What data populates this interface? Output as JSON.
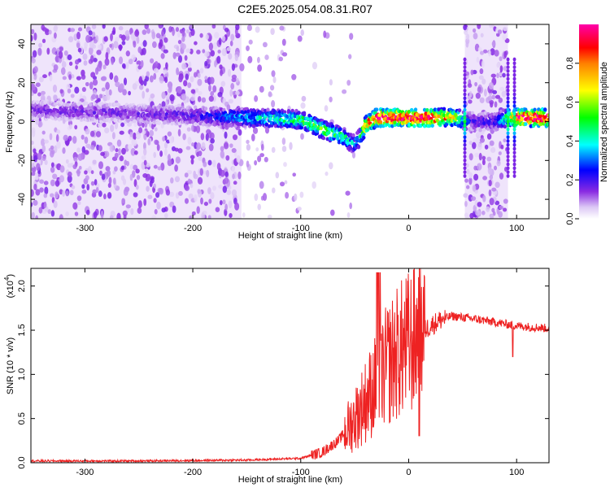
{
  "title": "C2E5.2025.054.08.31.R07",
  "chart_data": [
    {
      "type": "heatmap",
      "xlabel": "Height of straight line (km)",
      "ylabel": "Frequency (Hz)",
      "xlim": [
        -350,
        130
      ],
      "ylim": [
        -50,
        50
      ],
      "xticks": [
        -300,
        -200,
        -100,
        0,
        100
      ],
      "yticks": [
        -40,
        -20,
        0,
        20,
        40
      ],
      "colorbar": {
        "label": "Normalized spectral amplitude",
        "range": [
          0,
          1
        ],
        "ticks": [
          "0.0",
          "0.2",
          "0.4",
          "0.6",
          "0.8"
        ],
        "colors": [
          "#ffffff",
          "#8a2be2",
          "#0000ff",
          "#00ffff",
          "#00ff00",
          "#ffff00",
          "#ff0000",
          "#ff00ff"
        ]
      },
      "ridge": {
        "x": [
          -350,
          -300,
          -250,
          -200,
          -150,
          -100,
          -80,
          -60,
          -50,
          -45,
          -40,
          -30,
          -20,
          0,
          20,
          45,
          52,
          60,
          80,
          92,
          100,
          130
        ],
        "y": [
          6,
          5,
          4,
          3,
          2,
          1,
          -4,
          -8,
          -12,
          -8,
          -2,
          2,
          2,
          2,
          2,
          2,
          0,
          0,
          0,
          2,
          2,
          2
        ],
        "peak_amplitude": [
          0.15,
          0.15,
          0.15,
          0.18,
          0.35,
          0.5,
          0.55,
          0.45,
          0.35,
          0.4,
          0.8,
          0.95,
          0.95,
          0.95,
          0.95,
          0.6,
          0.3,
          0.2,
          0.2,
          0.5,
          0.95,
          0.95
        ]
      },
      "noise_bands": [
        [
          -350,
          -155
        ],
        [
          52,
          92
        ]
      ]
    },
    {
      "type": "line",
      "xlabel": "Height of straight line (km)",
      "ylabel": "SNR (10 * v/v)",
      "y_scale_label": "(x10",
      "y_scale_exponent": "4",
      "xlim": [
        -350,
        130
      ],
      "ylim": [
        0,
        2.2
      ],
      "xticks": [
        -300,
        -200,
        -100,
        0,
        100
      ],
      "yticks": [
        "0.0",
        "0.5",
        "1.0",
        "1.5",
        "2.0"
      ],
      "color": "#ee2222",
      "x": [
        -350,
        -250,
        -150,
        -100,
        -80,
        -65,
        -50,
        -40,
        -30,
        -20,
        -10,
        0,
        10,
        20,
        30,
        40,
        60,
        80,
        100,
        130
      ],
      "y": [
        0.02,
        0.02,
        0.03,
        0.05,
        0.12,
        0.25,
        0.5,
        0.7,
        0.9,
        1.1,
        1.25,
        1.35,
        1.45,
        1.55,
        1.62,
        1.66,
        1.63,
        1.59,
        1.55,
        1.52
      ]
    }
  ]
}
